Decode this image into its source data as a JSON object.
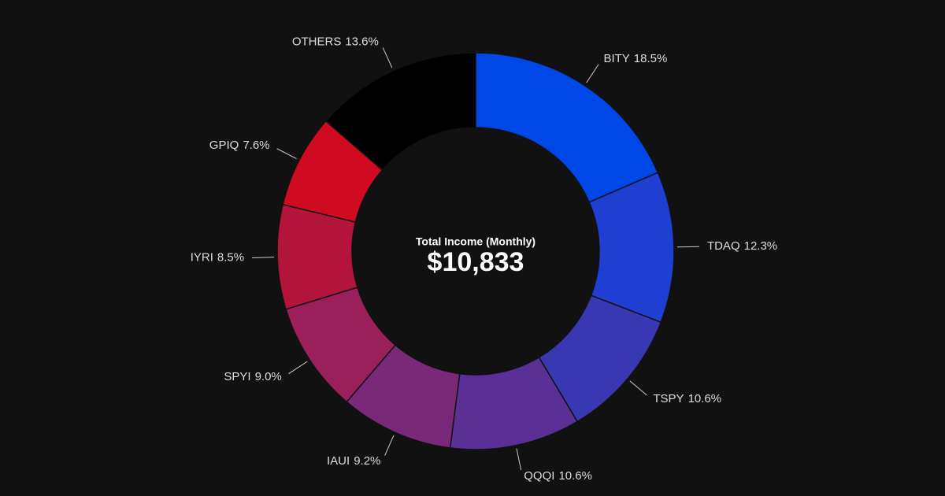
{
  "chart_data": {
    "type": "donut",
    "center_title": "Total Income (Monthly)",
    "center_label": "$10,833",
    "categories": [
      "BITY",
      "TDAQ",
      "TSPY",
      "QQQI",
      "IAUI",
      "SPYI",
      "IYRI",
      "GPIQ",
      "OTHERS"
    ],
    "values": [
      18.5,
      12.3,
      10.6,
      10.6,
      9.2,
      9.0,
      8.5,
      7.6,
      13.6
    ],
    "value_labels": [
      "18.5%",
      "12.3%",
      "10.6%",
      "10.6%",
      "9.2%",
      "9.0%",
      "8.5%",
      "7.6%",
      "13.6%"
    ],
    "colors": [
      "#0047e8",
      "#1f3fd2",
      "#3838b2",
      "#5a3096",
      "#7a2878",
      "#9a1f5a",
      "#b3143c",
      "#d00a20",
      "#000000"
    ]
  }
}
